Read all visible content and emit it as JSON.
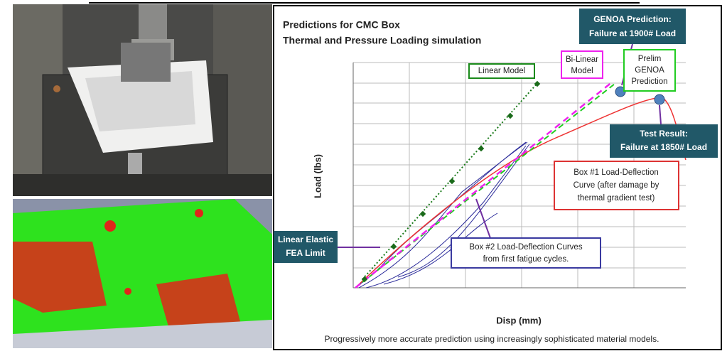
{
  "chart": {
    "title": [
      "Predictions for CMC Box",
      "Thermal and Pressure Loading simulation"
    ],
    "y_label": "Load (lbs)",
    "x_label": "Disp (mm)",
    "footer": "Progressively more accurate prediction using increasingly sophisticated material models.",
    "callouts": {
      "genoa": [
        "GENOA Prediction:",
        "Failure at 1900# Load"
      ],
      "test": [
        "Test Result:",
        "Failure at 1850# Load"
      ],
      "linear_elastic": [
        "Linear Elastic",
        "FEA Limit"
      ],
      "bilinear": [
        "Bi-Linear",
        "Model"
      ],
      "linear_model": "Linear Model",
      "prelim": [
        "Prelim",
        "GENOA",
        "Prediction"
      ],
      "box1": [
        "Box #1 Load-Deflection",
        "Curve (after damage by",
        "thermal gradient test)"
      ],
      "box2": [
        "Box #2 Load-Deflection Curves",
        "from first fatigue cycles."
      ]
    }
  }
}
